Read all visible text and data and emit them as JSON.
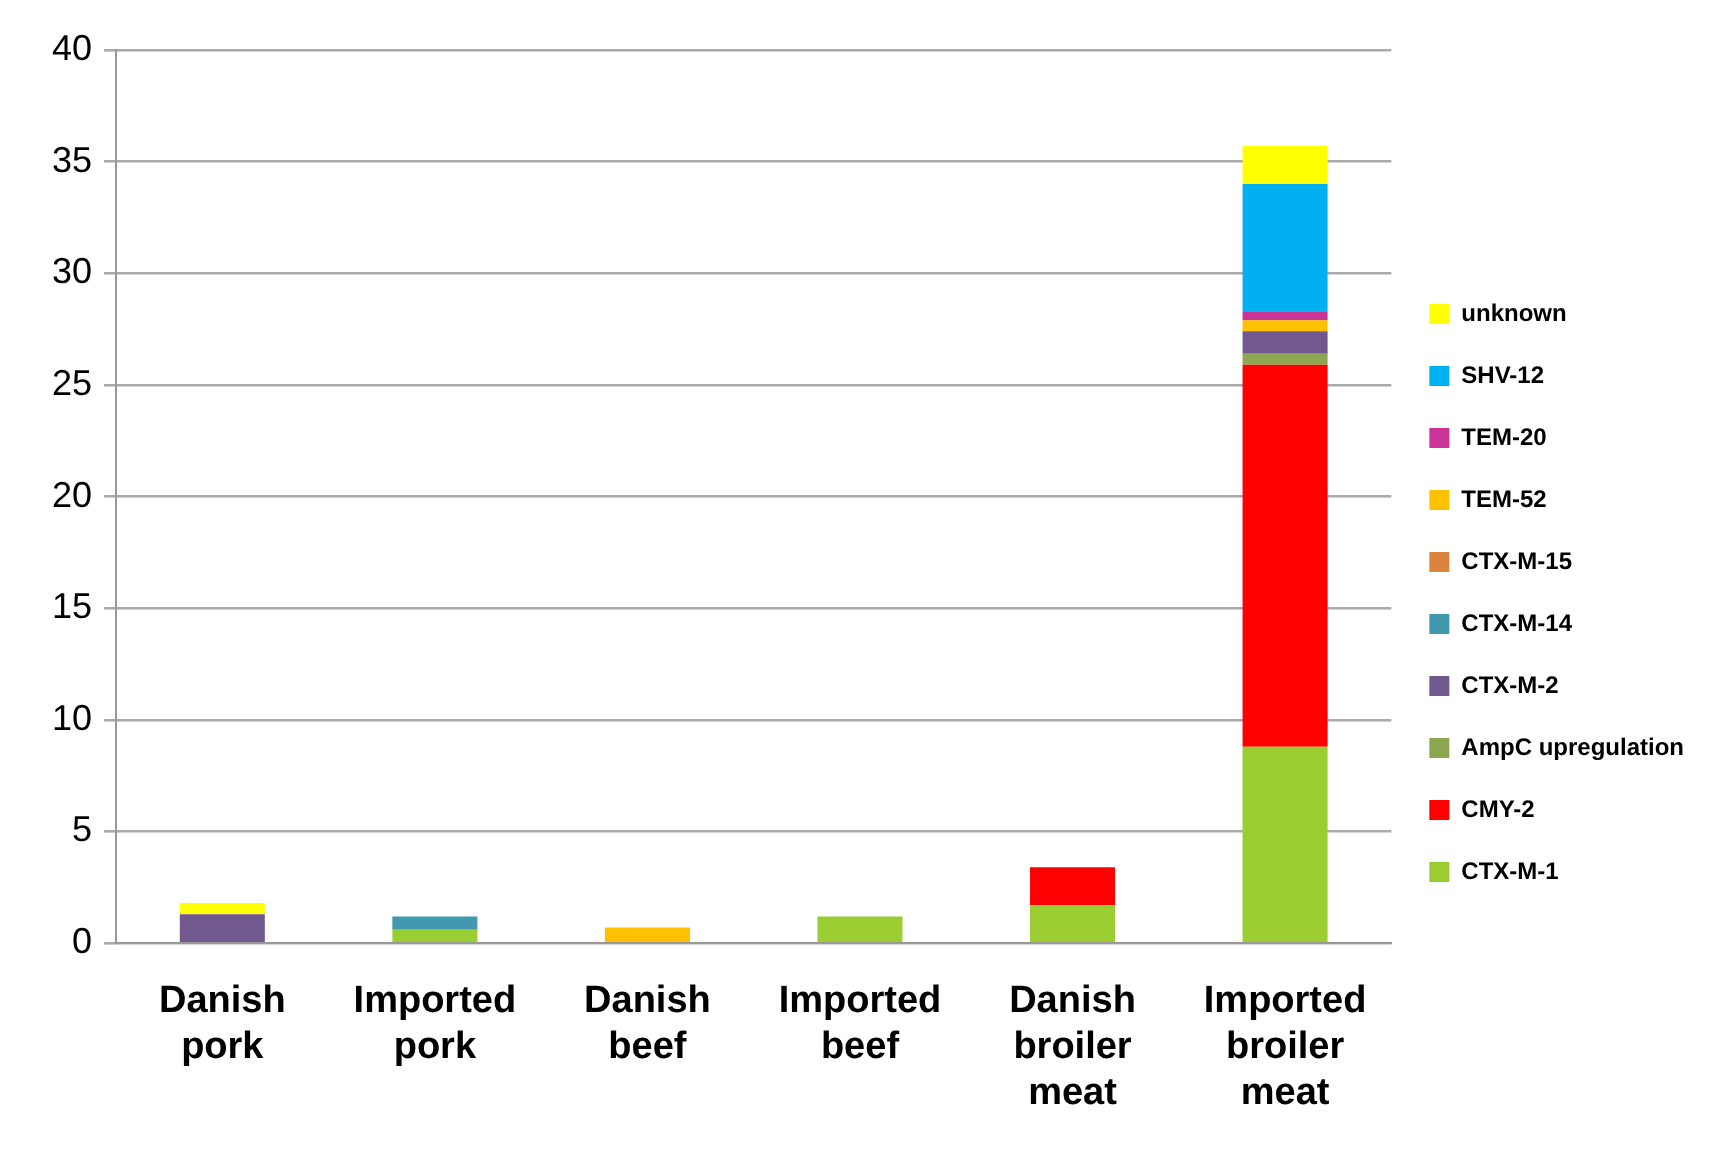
{
  "chart_data": {
    "type": "bar",
    "stacked": true,
    "categories": [
      "Danish pork",
      "Imported pork",
      "Danish beef",
      "Imported beef",
      "Danish broiler meat",
      "Imported broiler meat"
    ],
    "series": [
      {
        "name": "CTX-M-1",
        "color": "#9acd32",
        "values": [
          null,
          0.6,
          null,
          1.2,
          1.7,
          8.8
        ]
      },
      {
        "name": "CMY-2",
        "color": "#ff0000",
        "values": [
          null,
          null,
          null,
          null,
          1.7,
          17.1
        ]
      },
      {
        "name": "AmpC upregulation",
        "color": "#8fa650",
        "values": [
          null,
          null,
          null,
          null,
          null,
          0.5
        ]
      },
      {
        "name": "CTX-M-2",
        "color": "#71588f",
        "values": [
          1.3,
          null,
          null,
          null,
          null,
          1.0
        ]
      },
      {
        "name": "CTX-M-14",
        "color": "#4198af",
        "values": [
          null,
          0.6,
          null,
          null,
          null,
          null
        ]
      },
      {
        "name": "CTX-M-15",
        "color": "#db843d",
        "values": [
          null,
          null,
          null,
          null,
          null,
          null
        ]
      },
      {
        "name": "TEM-52",
        "color": "#ffc000",
        "values": [
          null,
          null,
          0.7,
          null,
          null,
          0.5
        ]
      },
      {
        "name": "TEM-20",
        "color": "#cc3399",
        "values": [
          null,
          null,
          null,
          null,
          null,
          0.4
        ]
      },
      {
        "name": "SHV-12",
        "color": "#00b0f0",
        "values": [
          null,
          null,
          null,
          null,
          null,
          5.7
        ]
      },
      {
        "name": "unknown",
        "color": "#ffff00",
        "values": [
          0.5,
          null,
          null,
          null,
          null,
          1.7
        ]
      }
    ],
    "ylim": [
      0,
      40
    ],
    "yticks": [
      0,
      5,
      10,
      15,
      20,
      25,
      30,
      35,
      40
    ],
    "grid": "y",
    "legend": "right"
  }
}
